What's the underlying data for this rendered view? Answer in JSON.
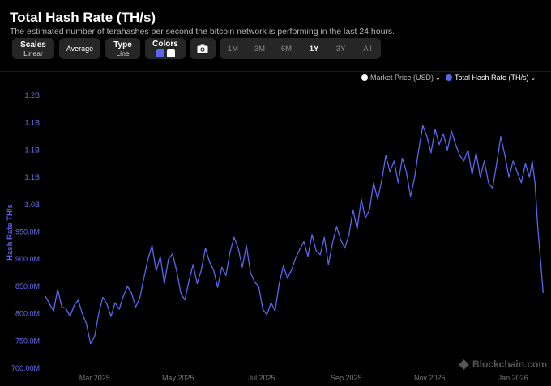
{
  "header": {
    "title": "Total Hash Rate (TH/s)",
    "subtitle": "The estimated number of terahashes per second the bitcoin network is performing in the last 24 hours."
  },
  "toolbar": {
    "scales_label": "Scales",
    "scales_value": "Linear",
    "average_label": "Average",
    "type_label": "Type",
    "type_value": "Line",
    "colors_label": "Colors",
    "color_swatches": [
      "#5a66ee",
      "#ffffff"
    ],
    "camera_icon": "camera-icon",
    "ranges": [
      "1M",
      "3M",
      "6M",
      "1Y",
      "3Y",
      "All"
    ],
    "active_range": "1Y"
  },
  "legend": {
    "market_price": "Market Price (USD)",
    "hash_rate": "Total Hash Rate (TH/s)"
  },
  "watermark": "Blockchain.com",
  "chart_data": {
    "type": "line",
    "ylabel": "Hash Rate TH/s",
    "ytick_labels": [
      "700.00M",
      "750.0M",
      "800.0M",
      "850.0M",
      "900.0M",
      "950.0M",
      "1.0B",
      "1.1B",
      "1.1B",
      "1.1B",
      "1.2B"
    ],
    "ytick_values": [
      700,
      750,
      800,
      850,
      900,
      950,
      1000,
      1050,
      1100,
      1150,
      1200
    ],
    "ylim": [
      700,
      1200
    ],
    "x_tick_labels": [
      "Mar 2025",
      "May 2025",
      "Jul 2025",
      "Sep 2025",
      "Nov 2025",
      "Jan 2026"
    ],
    "x_tick_dates": [
      "2025-03-01",
      "2025-05-01",
      "2025-07-01",
      "2025-09-01",
      "2025-11-01",
      "2026-01-01"
    ],
    "xlim": [
      "2025-01-24",
      "2026-01-24"
    ],
    "line_color": "#5a66ee",
    "series": [
      {
        "name": "Total Hash Rate (TH/s)",
        "unit": "M TH/s",
        "points": [
          [
            "2025-01-24",
            832
          ],
          [
            "2025-01-27",
            818
          ],
          [
            "2025-01-30",
            805
          ],
          [
            "2025-02-02",
            845
          ],
          [
            "2025-02-05",
            812
          ],
          [
            "2025-02-08",
            810
          ],
          [
            "2025-02-11",
            795
          ],
          [
            "2025-02-14",
            815
          ],
          [
            "2025-02-17",
            825
          ],
          [
            "2025-02-20",
            800
          ],
          [
            "2025-02-23",
            782
          ],
          [
            "2025-02-26",
            745
          ],
          [
            "2025-03-01",
            758
          ],
          [
            "2025-03-04",
            800
          ],
          [
            "2025-03-07",
            830
          ],
          [
            "2025-03-10",
            818
          ],
          [
            "2025-03-13",
            795
          ],
          [
            "2025-03-16",
            820
          ],
          [
            "2025-03-19",
            808
          ],
          [
            "2025-03-22",
            832
          ],
          [
            "2025-03-25",
            850
          ],
          [
            "2025-03-28",
            838
          ],
          [
            "2025-03-31",
            812
          ],
          [
            "2025-04-03",
            828
          ],
          [
            "2025-04-06",
            865
          ],
          [
            "2025-04-09",
            900
          ],
          [
            "2025-04-12",
            925
          ],
          [
            "2025-04-15",
            878
          ],
          [
            "2025-04-18",
            905
          ],
          [
            "2025-04-21",
            855
          ],
          [
            "2025-04-24",
            900
          ],
          [
            "2025-04-27",
            910
          ],
          [
            "2025-04-30",
            878
          ],
          [
            "2025-05-03",
            838
          ],
          [
            "2025-05-06",
            825
          ],
          [
            "2025-05-09",
            860
          ],
          [
            "2025-05-12",
            890
          ],
          [
            "2025-05-15",
            855
          ],
          [
            "2025-05-18",
            880
          ],
          [
            "2025-05-21",
            920
          ],
          [
            "2025-05-24",
            895
          ],
          [
            "2025-05-27",
            880
          ],
          [
            "2025-05-30",
            848
          ],
          [
            "2025-06-02",
            885
          ],
          [
            "2025-06-05",
            870
          ],
          [
            "2025-06-08",
            912
          ],
          [
            "2025-06-11",
            940
          ],
          [
            "2025-06-14",
            920
          ],
          [
            "2025-06-17",
            885
          ],
          [
            "2025-06-20",
            925
          ],
          [
            "2025-06-23",
            875
          ],
          [
            "2025-06-26",
            858
          ],
          [
            "2025-06-29",
            850
          ],
          [
            "2025-07-02",
            808
          ],
          [
            "2025-07-05",
            798
          ],
          [
            "2025-07-08",
            820
          ],
          [
            "2025-07-11",
            805
          ],
          [
            "2025-07-14",
            855
          ],
          [
            "2025-07-17",
            888
          ],
          [
            "2025-07-20",
            865
          ],
          [
            "2025-07-23",
            880
          ],
          [
            "2025-07-26",
            902
          ],
          [
            "2025-07-29",
            918
          ],
          [
            "2025-08-01",
            932
          ],
          [
            "2025-08-04",
            905
          ],
          [
            "2025-08-07",
            945
          ],
          [
            "2025-08-10",
            915
          ],
          [
            "2025-08-13",
            908
          ],
          [
            "2025-08-16",
            940
          ],
          [
            "2025-08-19",
            890
          ],
          [
            "2025-08-22",
            930
          ],
          [
            "2025-08-25",
            960
          ],
          [
            "2025-08-28",
            935
          ],
          [
            "2025-08-31",
            920
          ],
          [
            "2025-09-03",
            945
          ],
          [
            "2025-09-06",
            990
          ],
          [
            "2025-09-09",
            955
          ],
          [
            "2025-09-12",
            1010
          ],
          [
            "2025-09-15",
            975
          ],
          [
            "2025-09-18",
            990
          ],
          [
            "2025-09-21",
            1040
          ],
          [
            "2025-09-24",
            1010
          ],
          [
            "2025-09-27",
            1045
          ],
          [
            "2025-09-30",
            1090
          ],
          [
            "2025-10-03",
            1060
          ],
          [
            "2025-10-06",
            1080
          ],
          [
            "2025-10-09",
            1040
          ],
          [
            "2025-10-12",
            1085
          ],
          [
            "2025-10-15",
            1060
          ],
          [
            "2025-10-18",
            1015
          ],
          [
            "2025-10-21",
            1050
          ],
          [
            "2025-10-24",
            1100
          ],
          [
            "2025-10-27",
            1145
          ],
          [
            "2025-10-30",
            1125
          ],
          [
            "2025-11-02",
            1095
          ],
          [
            "2025-11-05",
            1138
          ],
          [
            "2025-11-08",
            1110
          ],
          [
            "2025-11-11",
            1130
          ],
          [
            "2025-11-14",
            1100
          ],
          [
            "2025-11-17",
            1135
          ],
          [
            "2025-11-20",
            1110
          ],
          [
            "2025-11-23",
            1090
          ],
          [
            "2025-11-26",
            1080
          ],
          [
            "2025-11-29",
            1100
          ],
          [
            "2025-12-02",
            1055
          ],
          [
            "2025-12-05",
            1095
          ],
          [
            "2025-12-08",
            1050
          ],
          [
            "2025-12-11",
            1080
          ],
          [
            "2025-12-14",
            1040
          ],
          [
            "2025-12-17",
            1030
          ],
          [
            "2025-12-20",
            1075
          ],
          [
            "2025-12-23",
            1125
          ],
          [
            "2025-12-26",
            1090
          ],
          [
            "2025-12-29",
            1050
          ],
          [
            "2026-01-01",
            1080
          ],
          [
            "2026-01-04",
            1060
          ],
          [
            "2026-01-07",
            1040
          ],
          [
            "2026-01-10",
            1075
          ],
          [
            "2026-01-13",
            1050
          ],
          [
            "2026-01-15",
            1080
          ],
          [
            "2026-01-17",
            1040
          ],
          [
            "2026-01-19",
            960
          ],
          [
            "2026-01-21",
            900
          ],
          [
            "2026-01-23",
            838
          ]
        ]
      }
    ]
  }
}
